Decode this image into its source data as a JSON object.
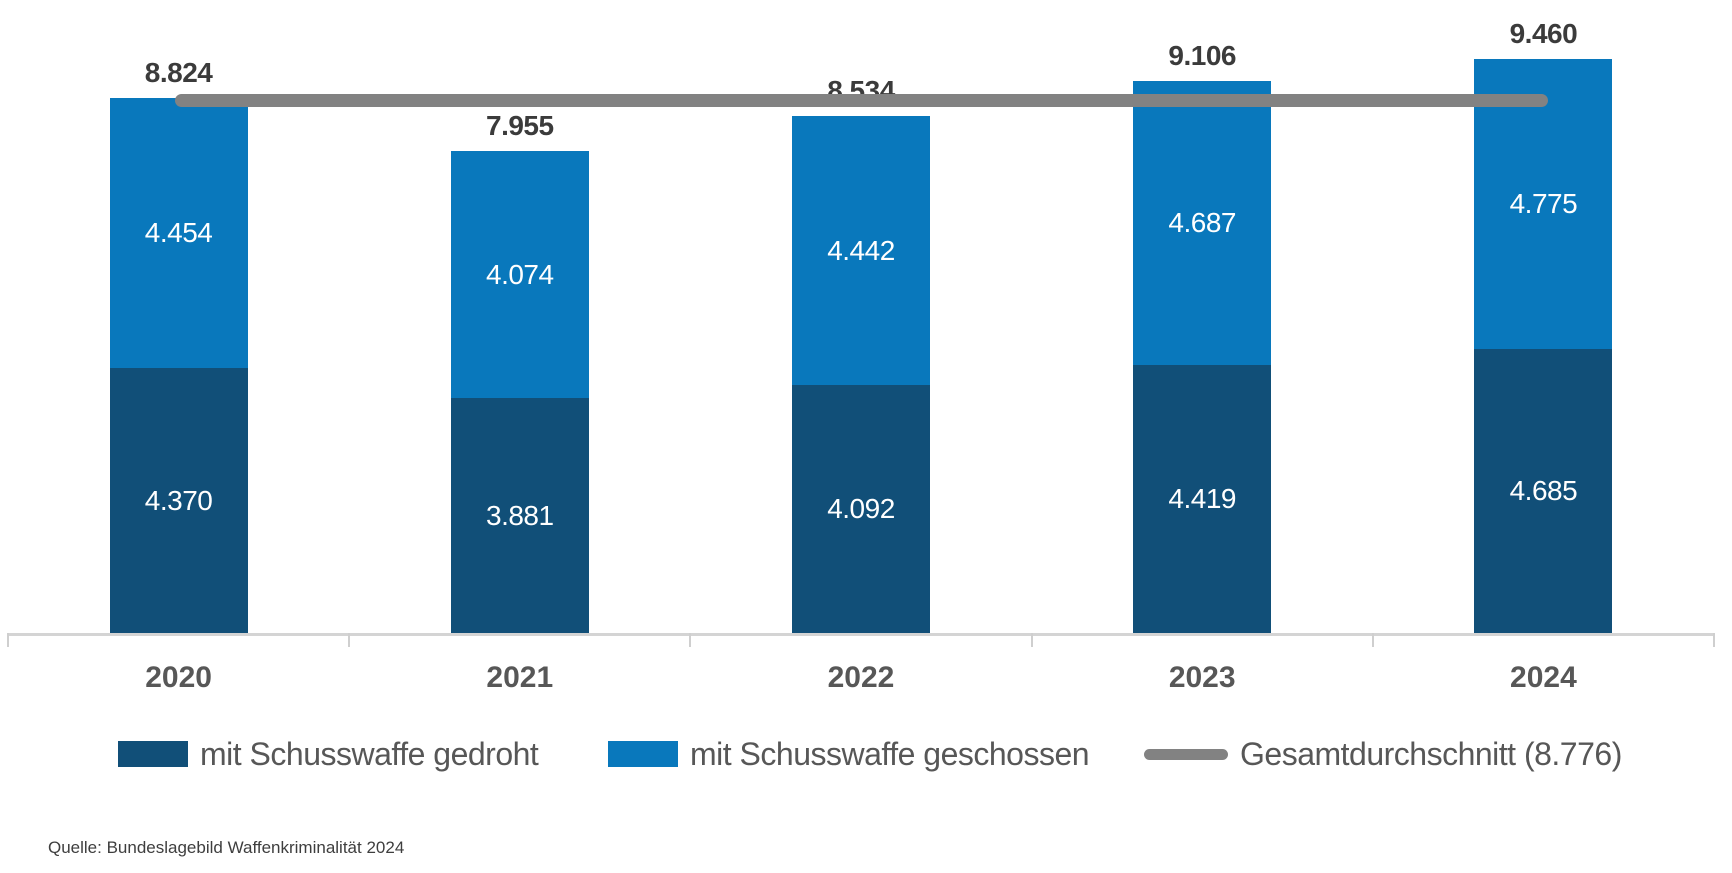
{
  "chart_data": {
    "type": "bar",
    "stacked": true,
    "grid": false,
    "legend_position": "bottom",
    "categories": [
      "2020",
      "2021",
      "2022",
      "2023",
      "2024"
    ],
    "series": [
      {
        "id": "gedroht",
        "name": "mit Schusswaffe gedroht",
        "color": "#114F78",
        "values": [
          4370,
          3881,
          4092,
          4419,
          4685
        ],
        "labels": [
          "4.370",
          "3.881",
          "4.092",
          "4.419",
          "4.685"
        ]
      },
      {
        "id": "geschossen",
        "name": "mit Schusswaffe geschossen",
        "color": "#0978BC",
        "values": [
          4454,
          4074,
          4442,
          4687,
          4775
        ],
        "labels": [
          "4.454",
          "4.074",
          "4.442",
          "4.687",
          "4.775"
        ]
      }
    ],
    "totals": [
      8824,
      7955,
      8534,
      9106,
      9460
    ],
    "total_labels": [
      "8.824",
      "7.955",
      "8.534",
      "9.106",
      "9.460"
    ],
    "average_line": {
      "name": "Gesamtdurchschnitt (8.776)",
      "value": 8776,
      "color": "#828282"
    },
    "ylim": [
      0,
      9460
    ]
  },
  "source": {
    "text": "Quelle: Bundeslagebild Waffenkriminalität 2024"
  },
  "colors": {
    "axis": "#d4d4d4",
    "total_label": "#3b3b3b",
    "axis_label": "#575757",
    "bar_value_label": "#ffffff"
  }
}
